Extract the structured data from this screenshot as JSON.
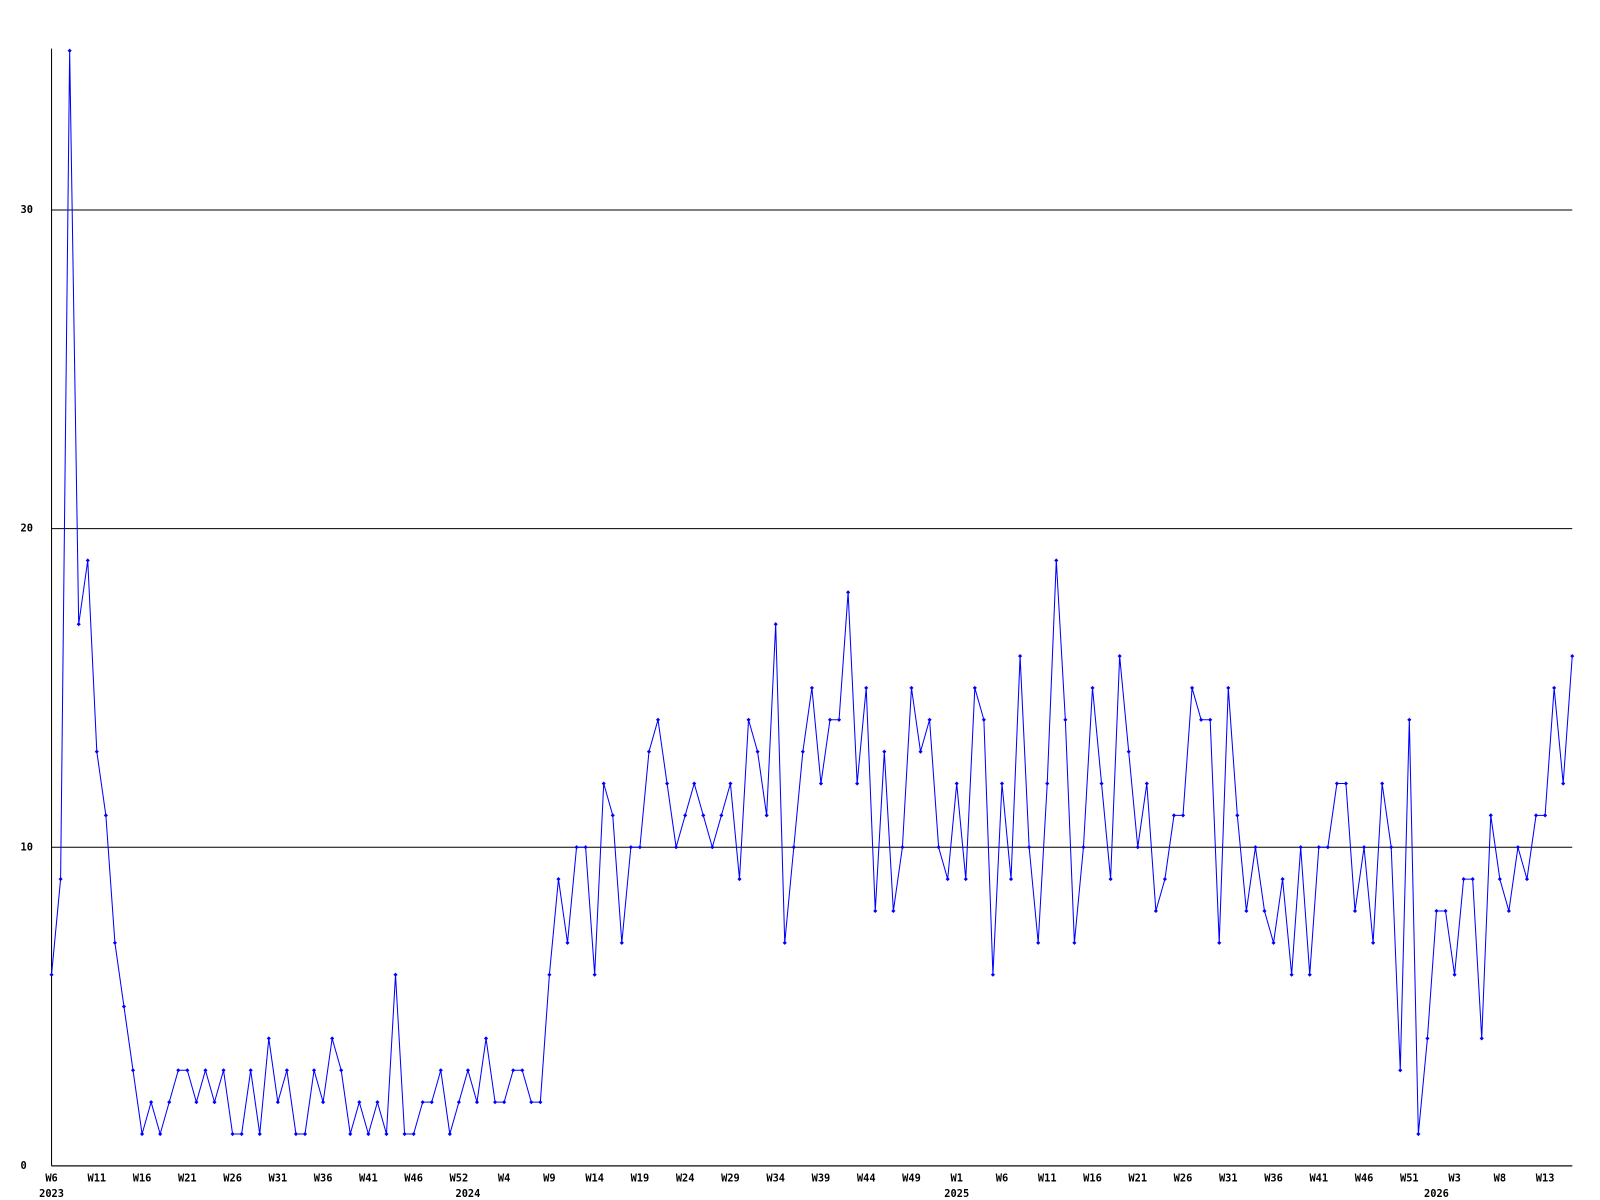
{
  "chart_data": {
    "type": "line",
    "categories": [
      "W6",
      null,
      null,
      null,
      null,
      "W11",
      null,
      null,
      null,
      null,
      "W16",
      null,
      null,
      null,
      null,
      "W21",
      null,
      null,
      null,
      null,
      "W26",
      null,
      null,
      null,
      null,
      "W31",
      null,
      null,
      null,
      null,
      "W36",
      null,
      null,
      null,
      null,
      "W41",
      null,
      null,
      null,
      null,
      "W46",
      null,
      null,
      null,
      null,
      "W52",
      null,
      null,
      null,
      null,
      "W4",
      null,
      null,
      null,
      null,
      "W9",
      null,
      null,
      null,
      null,
      "W14",
      null,
      null,
      null,
      null,
      "W19",
      null,
      null,
      null,
      null,
      "W24",
      null,
      null,
      null,
      null,
      "W29",
      null,
      null,
      null,
      null,
      "W34",
      null,
      null,
      null,
      null,
      "W39",
      null,
      null,
      null,
      null,
      "W44",
      null,
      null,
      null,
      null,
      "W49",
      null,
      null,
      null,
      null,
      "W1",
      null,
      null,
      null,
      null,
      "W6",
      null,
      null,
      null,
      null,
      "W11",
      null,
      null,
      null,
      null,
      "W16",
      null,
      null,
      null,
      null,
      "W21",
      null,
      null,
      null,
      null,
      "W26",
      null,
      null,
      null,
      null,
      "W31",
      null,
      null,
      null,
      null,
      "W36",
      null,
      null,
      null,
      null,
      "W41",
      null,
      null,
      null,
      null,
      "W46",
      null,
      null,
      null,
      null,
      "W51",
      null,
      null,
      null,
      null,
      "W3",
      null,
      null,
      null,
      null,
      "W8",
      null,
      null,
      null,
      null,
      "W13",
      null,
      null,
      null
    ],
    "years": [
      "2023",
      null,
      null,
      null,
      null,
      null,
      null,
      null,
      null,
      null,
      null,
      null,
      null,
      null,
      null,
      null,
      null,
      null,
      null,
      null,
      null,
      null,
      null,
      null,
      null,
      null,
      null,
      null,
      null,
      null,
      null,
      null,
      null,
      null,
      null,
      null,
      null,
      null,
      null,
      null,
      null,
      null,
      null,
      null,
      null,
      null,
      "2024",
      null,
      null,
      null,
      null,
      null,
      null,
      null,
      null,
      null,
      null,
      null,
      null,
      null,
      null,
      null,
      null,
      null,
      null,
      null,
      null,
      null,
      null,
      null,
      null,
      null,
      null,
      null,
      null,
      null,
      null,
      null,
      null,
      null,
      null,
      null,
      null,
      null,
      null,
      null,
      null,
      null,
      null,
      null,
      null,
      null,
      null,
      null,
      null,
      null,
      null,
      null,
      null,
      null,
      "2025",
      null,
      null,
      null,
      null,
      null,
      null,
      null,
      null,
      null,
      null,
      null,
      null,
      null,
      null,
      null,
      null,
      null,
      null,
      null,
      null,
      null,
      null,
      null,
      null,
      null,
      null,
      null,
      null,
      null,
      null,
      null,
      null,
      null,
      null,
      null,
      null,
      null,
      null,
      null,
      null,
      null,
      null,
      null,
      null,
      null,
      null,
      null,
      null,
      null,
      null,
      null,
      null,
      "2026",
      null,
      null,
      null,
      null,
      null,
      null,
      null,
      null,
      null,
      null,
      null,
      null,
      null,
      null,
      null
    ],
    "values": [
      6,
      9,
      35,
      17,
      19,
      13,
      11,
      7,
      5,
      3,
      1,
      2,
      1,
      2,
      3,
      3,
      2,
      3,
      2,
      3,
      1,
      1,
      3,
      1,
      4,
      2,
      3,
      1,
      1,
      3,
      2,
      4,
      3,
      1,
      2,
      1,
      2,
      1,
      6,
      1,
      1,
      2,
      2,
      3,
      1,
      2,
      3,
      2,
      4,
      2,
      2,
      3,
      3,
      2,
      2,
      6,
      9,
      7,
      10,
      10,
      6,
      12,
      11,
      7,
      10,
      10,
      13,
      14,
      12,
      10,
      11,
      12,
      11,
      10,
      11,
      12,
      9,
      14,
      13,
      11,
      17,
      7,
      10,
      13,
      15,
      12,
      14,
      14,
      18,
      12,
      15,
      8,
      13,
      8,
      10,
      15,
      13,
      14,
      10,
      9,
      12,
      9,
      15,
      14,
      6,
      12,
      9,
      16,
      10,
      7,
      12,
      19,
      14,
      7,
      10,
      15,
      12,
      9,
      16,
      13,
      10,
      12,
      8,
      9,
      11,
      11,
      15,
      14,
      14,
      7,
      15,
      11,
      8,
      10,
      8,
      7,
      9,
      6,
      10,
      6,
      10,
      10,
      12,
      12,
      8,
      10,
      7,
      12,
      10,
      3,
      14,
      1,
      4,
      8,
      8,
      6,
      9,
      9,
      4,
      11,
      9,
      8,
      10,
      9,
      11,
      11,
      15,
      12,
      16
    ],
    "color": "#0000ff",
    "ylim": [
      0,
      35
    ],
    "yticks": [
      0,
      10,
      20,
      30
    ],
    "grid": true
  }
}
